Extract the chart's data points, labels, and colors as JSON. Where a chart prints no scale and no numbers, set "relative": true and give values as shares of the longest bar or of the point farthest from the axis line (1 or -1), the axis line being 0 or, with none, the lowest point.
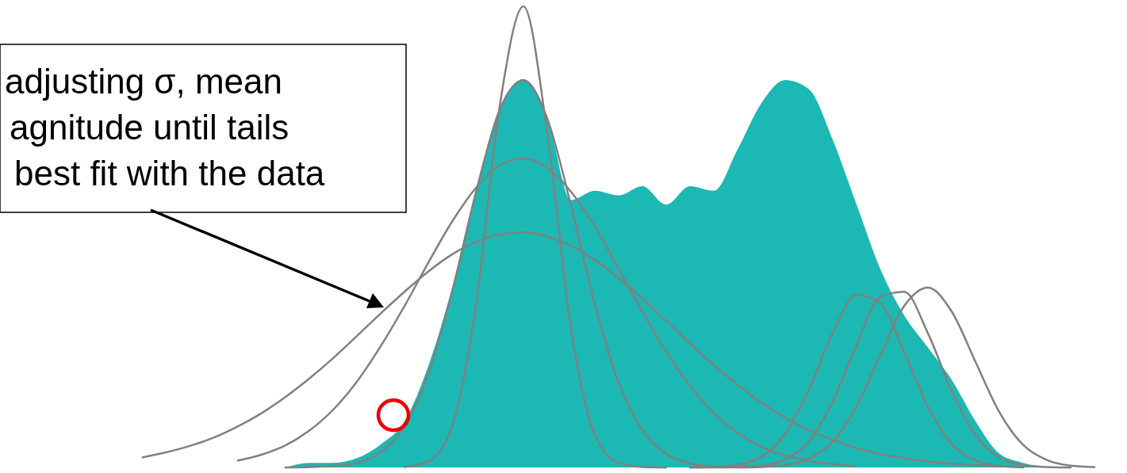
{
  "chart_data": {
    "type": "area",
    "relative": true,
    "categories": [
      null,
      null,
      null,
      null,
      null,
      null,
      null,
      null,
      null,
      null,
      null,
      null,
      null,
      null,
      null,
      null,
      null,
      null,
      null,
      null,
      null,
      null,
      null,
      null,
      null,
      null,
      null,
      null,
      null,
      null,
      null,
      null,
      null,
      null,
      null,
      null,
      null,
      null,
      null,
      null,
      null
    ],
    "annotations": [
      "adjusting σ, mean\nagnitude until tails\nbest fit with the data"
    ],
    "series": [
      {
        "color": "#1bb8b4",
        "values": [
          null,
          null,
          null,
          null,
          null,
          null,
          0,
          0.01,
          0.01,
          0.02,
          0.05,
          0.1,
          0.22,
          0.39,
          0.6,
          0.78,
          0.84,
          0.76,
          0.58,
          0.6,
          0.59,
          0.61,
          0.57,
          0.61,
          0.6,
          0.69,
          0.79,
          0.84,
          0.82,
          0.71,
          0.57,
          0.43,
          0.33,
          0.26,
          0.19,
          0.1,
          0.03,
          0.01,
          0,
          null,
          null
        ]
      },
      {
        "type": "line",
        "color": "#808080",
        "values": [
          0.022,
          0.033,
          0.047,
          0.065,
          0.089,
          0.118,
          0.153,
          0.193,
          0.237,
          0.285,
          0.334,
          0.381,
          0.425,
          0.462,
          0.489,
          0.505,
          0.51,
          0.501,
          0.481,
          0.45,
          0.411,
          0.366,
          0.318,
          0.269,
          0.222,
          0.179,
          0.141,
          0.108,
          0.081,
          0.059,
          0.042,
          0.029,
          0.02,
          0.013,
          0.008,
          0.005,
          0.003,
          null,
          null,
          null,
          null
        ]
      },
      {
        "type": "line",
        "color": "#808080",
        "values": [
          null,
          null,
          null,
          null,
          0.015,
          0.028,
          0.048,
          0.08,
          0.125,
          0.186,
          0.263,
          0.35,
          0.444,
          0.533,
          0.606,
          0.655,
          0.67,
          0.65,
          0.598,
          0.522,
          0.431,
          0.338,
          0.251,
          0.177,
          0.118,
          0.075,
          0.045,
          0.026,
          0.014,
          0.007,
          0.003,
          null,
          null,
          null,
          null,
          null,
          null,
          null,
          null,
          null,
          null
        ]
      },
      {
        "type": "line",
        "color": "#808080",
        "values": [
          null,
          null,
          null,
          null,
          null,
          null,
          0,
          0.001,
          0.003,
          0.01,
          0.033,
          0.09,
          0.203,
          0.381,
          0.596,
          0.775,
          0.84,
          0.757,
          0.568,
          0.354,
          0.184,
          0.08,
          0.029,
          0.009,
          0.002,
          0,
          null,
          null,
          null,
          null,
          null,
          null,
          null,
          null,
          null,
          null,
          null,
          null,
          null,
          null,
          null
        ]
      },
      {
        "type": "line",
        "color": "#808080",
        "values": [
          null,
          null,
          null,
          null,
          null,
          null,
          null,
          null,
          null,
          null,
          null,
          0.001,
          0.013,
          0.089,
          0.35,
          0.783,
          1.0,
          0.726,
          0.301,
          0.071,
          0.01,
          0.001,
          0,
          null,
          null,
          null,
          null,
          null,
          null,
          null,
          null,
          null,
          null,
          null,
          null,
          null,
          null,
          null,
          null,
          null,
          null
        ]
      },
      {
        "type": "line",
        "color": "#808080",
        "values": [
          null,
          null,
          null,
          null,
          null,
          null,
          null,
          null,
          null,
          null,
          null,
          null,
          null,
          null,
          null,
          null,
          null,
          null,
          null,
          null,
          null,
          null,
          null,
          0,
          0,
          0.001,
          0.004,
          0.017,
          0.057,
          0.143,
          0.266,
          0.37,
          0.381,
          0.291,
          0.166,
          0.07,
          0.022,
          0.005,
          0.001,
          0,
          null
        ]
      },
      {
        "type": "line",
        "color": "#808080",
        "values": [
          null,
          null,
          null,
          null,
          null,
          null,
          null,
          null,
          null,
          null,
          null,
          null,
          null,
          null,
          null,
          null,
          null,
          null,
          null,
          null,
          null,
          null,
          null,
          0,
          0.001,
          0.006,
          0.023,
          0.073,
          0.169,
          0.292,
          0.374,
          0.356,
          0.251,
          0.132,
          0.051,
          0.015,
          0.003,
          0,
          null,
          null,
          null
        ]
      },
      {
        "type": "line",
        "color": "#808080",
        "values": [
          null,
          null,
          null,
          null,
          null,
          null,
          null,
          null,
          null,
          null,
          null,
          null,
          null,
          null,
          null,
          null,
          null,
          null,
          null,
          null,
          null,
          null,
          null,
          null,
          null,
          0,
          0.001,
          0.005,
          0.019,
          0.056,
          0.133,
          0.244,
          0.35,
          0.39,
          0.338,
          0.229,
          0.12,
          0.049,
          0.016,
          0.004,
          0.001
        ]
      }
    ]
  }
}
